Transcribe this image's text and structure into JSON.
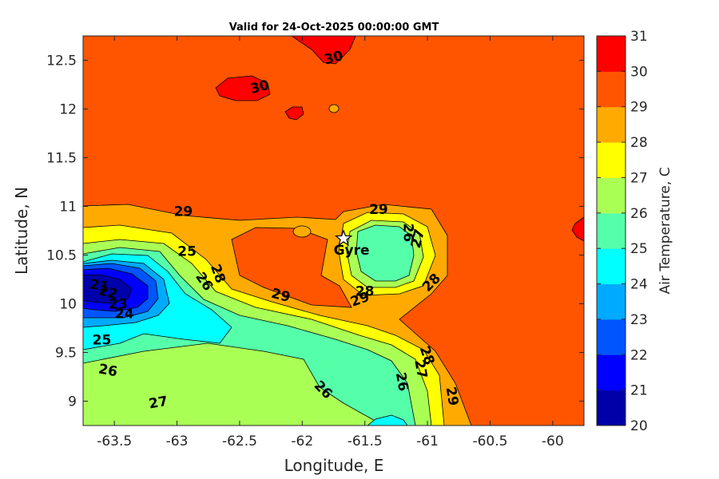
{
  "chart_data": {
    "type": "contour",
    "title": "Valid for 24-Oct-2025 00:00:00 GMT",
    "xlabel": "Longitude, E",
    "ylabel": "Latitude, N",
    "xlim": [
      -63.75,
      -59.75
    ],
    "ylim": [
      8.75,
      12.75
    ],
    "xticks": [
      "-63.5",
      "-63",
      "-62.5",
      "-62",
      "-61.5",
      "-61",
      "-60.5",
      "-60"
    ],
    "yticks": [
      "9",
      "9.5",
      "10",
      "10.5",
      "11",
      "11.5",
      "12",
      "12.5"
    ],
    "colorbar": {
      "label": "Air Temperature, C",
      "ticks": [
        "20",
        "21",
        "22",
        "23",
        "24",
        "25",
        "26",
        "27",
        "28",
        "29",
        "30",
        "31"
      ],
      "levels": [
        {
          "from": 20,
          "to": 21,
          "color": "#0000aa"
        },
        {
          "from": 21,
          "to": 22,
          "color": "#0000ff"
        },
        {
          "from": 22,
          "to": 23,
          "color": "#0055ff"
        },
        {
          "from": 23,
          "to": 24,
          "color": "#00aaff"
        },
        {
          "from": 24,
          "to": 25,
          "color": "#00ffff"
        },
        {
          "from": 25,
          "to": 26,
          "color": "#55ffaa"
        },
        {
          "from": 26,
          "to": 27,
          "color": "#aaff55"
        },
        {
          "from": 27,
          "to": 28,
          "color": "#ffff00"
        },
        {
          "from": 28,
          "to": 29,
          "color": "#ffaa00"
        },
        {
          "from": 29,
          "to": 30,
          "color": "#ff5500"
        },
        {
          "from": 30,
          "to": 31,
          "color": "#ff0000"
        }
      ]
    },
    "station": {
      "name": "Gyre",
      "lon": -61.67,
      "lat": 10.67
    },
    "contour_labels": [
      {
        "text": "30",
        "lon": -62.34,
        "lat": 12.23,
        "angle": -15
      },
      {
        "text": "30",
        "lon": -61.75,
        "lat": 12.53,
        "angle": -15
      },
      {
        "text": "29",
        "lon": -62.95,
        "lat": 10.95,
        "angle": 0
      },
      {
        "text": "29",
        "lon": -61.39,
        "lat": 10.97,
        "angle": 0
      },
      {
        "text": "29",
        "lon": -62.17,
        "lat": 10.09,
        "angle": 15
      },
      {
        "text": "29",
        "lon": -61.54,
        "lat": 10.05,
        "angle": -20
      },
      {
        "text": "29",
        "lon": -60.8,
        "lat": 9.05,
        "angle": 80
      },
      {
        "text": "28",
        "lon": -62.67,
        "lat": 10.31,
        "angle": 70
      },
      {
        "text": "28",
        "lon": -61.5,
        "lat": 10.13,
        "angle": 0
      },
      {
        "text": "28",
        "lon": -60.97,
        "lat": 10.22,
        "angle": -45
      },
      {
        "text": "28",
        "lon": -61.0,
        "lat": 9.47,
        "angle": 70
      },
      {
        "text": "27",
        "lon": -61.08,
        "lat": 10.67,
        "angle": -75
      },
      {
        "text": "27",
        "lon": -61.05,
        "lat": 9.33,
        "angle": 80
      },
      {
        "text": "27",
        "lon": -63.15,
        "lat": 8.99,
        "angle": -10
      },
      {
        "text": "26",
        "lon": -61.15,
        "lat": 10.73,
        "angle": 90
      },
      {
        "text": "26",
        "lon": -62.78,
        "lat": 10.23,
        "angle": 55
      },
      {
        "text": "26",
        "lon": -63.55,
        "lat": 9.32,
        "angle": 10
      },
      {
        "text": "26",
        "lon": -61.83,
        "lat": 9.12,
        "angle": 45
      },
      {
        "text": "26",
        "lon": -61.2,
        "lat": 9.2,
        "angle": 80
      },
      {
        "text": "25",
        "lon": -62.92,
        "lat": 10.54,
        "angle": 0
      },
      {
        "text": "25",
        "lon": -63.6,
        "lat": 9.63,
        "angle": 0
      },
      {
        "text": "24",
        "lon": -63.42,
        "lat": 9.9,
        "angle": 0
      },
      {
        "text": "23",
        "lon": -63.47,
        "lat": 10.0,
        "angle": 0
      },
      {
        "text": "22",
        "lon": -63.55,
        "lat": 10.12,
        "angle": 15
      },
      {
        "text": "21",
        "lon": -63.62,
        "lat": 10.19,
        "angle": 10
      }
    ]
  }
}
